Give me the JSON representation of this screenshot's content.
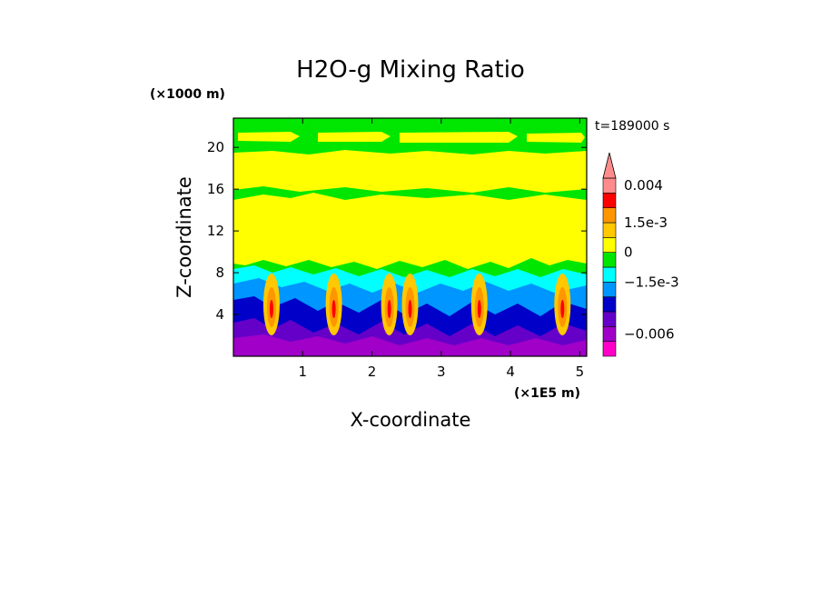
{
  "chart_data": {
    "type": "heatmap",
    "title": "H2O-g Mixing Ratio",
    "xlabel": "X-coordinate",
    "ylabel": "Z-coordinate",
    "x_unit_label": "(×1E5 m)",
    "y_unit_label": "(×1000 m)",
    "time_label": "t=189000 s",
    "xlim": [
      0,
      5.1
    ],
    "ylim": [
      0,
      22.8
    ],
    "x_ticks": [
      {
        "value": 1,
        "label": "1"
      },
      {
        "value": 2,
        "label": "2"
      },
      {
        "value": 3,
        "label": "3"
      },
      {
        "value": 4,
        "label": "4"
      },
      {
        "value": 5,
        "label": "5"
      }
    ],
    "y_ticks": [
      {
        "value": 4,
        "label": "4"
      },
      {
        "value": 8,
        "label": "8"
      },
      {
        "value": 12,
        "label": "12"
      },
      {
        "value": 16,
        "label": "16"
      },
      {
        "value": 20,
        "label": "20"
      }
    ],
    "colorbar": {
      "levels": [
        {
          "color": "#ff00c8"
        },
        {
          "color": "#a000c8"
        },
        {
          "color": "#6400c8"
        },
        {
          "color": "#0000c8"
        },
        {
          "color": "#0096ff"
        },
        {
          "color": "#00ffff"
        },
        {
          "color": "#00e600"
        },
        {
          "color": "#ffff00"
        },
        {
          "color": "#ffc800"
        },
        {
          "color": "#ff9600"
        },
        {
          "color": "#ff0000"
        },
        {
          "color": "#ff8c8c"
        }
      ],
      "labels": [
        {
          "text": "0.004",
          "level": 11
        },
        {
          "text": "1.5e-3",
          "level": 8.5
        },
        {
          "text": "0",
          "level": 6.5
        },
        {
          "text": "−1.5e-3",
          "level": 4.5
        },
        {
          "text": "−0.006",
          "level": 1
        }
      ],
      "extend": "max"
    }
  }
}
